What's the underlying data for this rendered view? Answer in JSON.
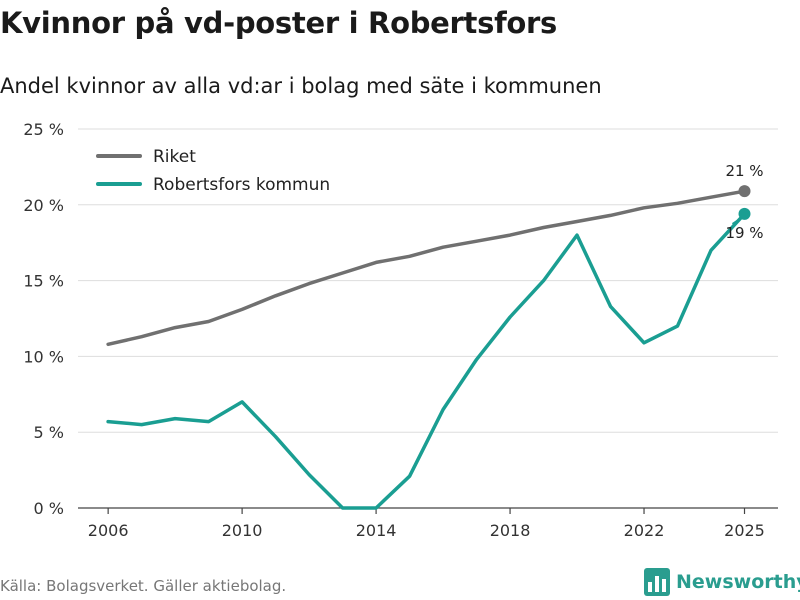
{
  "header": {
    "title": "Kvinnor på vd-poster i Robertsfors",
    "subtitle": "Andel kvinnor av alla vd:ar i bolag med säte i kommunen"
  },
  "footer": {
    "source": "Källa: Bolagsverket. Gäller aktiebolag.",
    "brand": "Newsworthy",
    "brand_icon": "bar-chart-logo-icon"
  },
  "colors": {
    "riket": "#707070",
    "kommun": "#1a9e92",
    "grid": "#dddddd",
    "brand": "#2a9d8f"
  },
  "chart_data": {
    "type": "line",
    "x": [
      2006,
      2007,
      2008,
      2009,
      2010,
      2011,
      2012,
      2013,
      2014,
      2015,
      2016,
      2017,
      2018,
      2019,
      2020,
      2021,
      2022,
      2023,
      2024,
      2025
    ],
    "series": [
      {
        "name": "Riket",
        "values": [
          10.8,
          11.3,
          11.9,
          12.3,
          13.1,
          14.0,
          14.8,
          15.5,
          16.2,
          16.6,
          17.2,
          17.6,
          18.0,
          18.5,
          18.9,
          19.3,
          19.8,
          20.1,
          20.5,
          20.9
        ],
        "end_label": "21 %"
      },
      {
        "name": "Robertsfors kommun",
        "values": [
          5.7,
          5.5,
          5.9,
          5.7,
          7.0,
          4.7,
          2.2,
          0.0,
          0.0,
          2.1,
          6.5,
          9.8,
          12.6,
          15.0,
          18.0,
          13.3,
          10.9,
          12.0,
          17.0,
          19.4
        ],
        "end_label": "19 %"
      }
    ],
    "ylim": [
      0,
      25
    ],
    "yticks": [
      0,
      5,
      10,
      15,
      20,
      25
    ],
    "ytick_labels": [
      "0 %",
      "5 %",
      "10 %",
      "15 %",
      "20 %",
      "25 %"
    ],
    "xticks": [
      2006,
      2010,
      2014,
      2018,
      2022,
      2025
    ],
    "xtick_labels": [
      "2006",
      "2010",
      "2014",
      "2018",
      "2022",
      "2025"
    ],
    "xlim": [
      2005.1,
      2026
    ],
    "grid": true,
    "legend": "top-left",
    "title": "Kvinnor på vd-poster i Robertsfors",
    "subtitle": "Andel kvinnor av alla vd:ar i bolag med säte i kommunen"
  }
}
